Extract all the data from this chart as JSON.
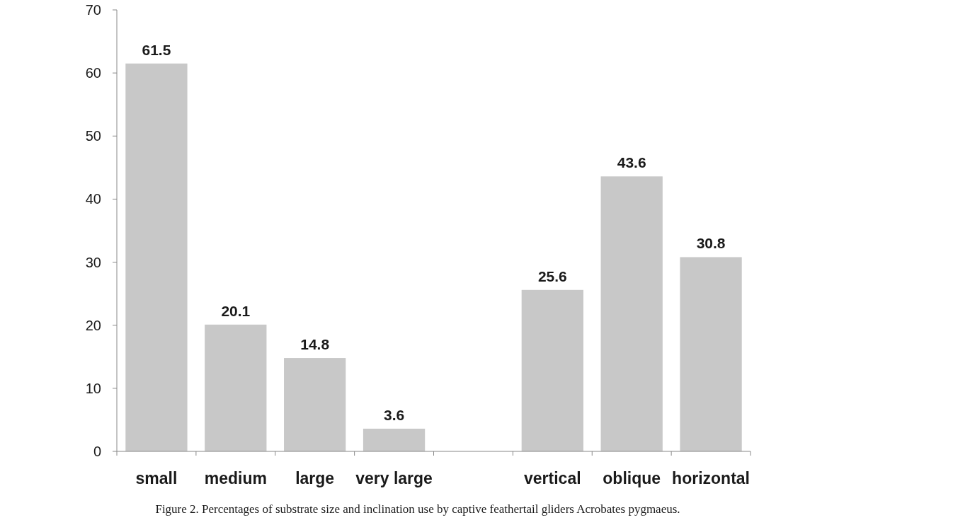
{
  "chart_data": {
    "type": "bar",
    "categories": [
      "small",
      "medium",
      "large",
      "very large",
      null,
      "vertical",
      "oblique",
      "horizontal"
    ],
    "values": [
      61.5,
      20.1,
      14.8,
      3.6,
      null,
      25.6,
      43.6,
      30.8
    ],
    "color": "#c8c8c8",
    "ylim": [
      0,
      70
    ],
    "yticks": [
      0,
      10,
      20,
      30,
      40,
      50,
      60,
      70
    ],
    "data_labels": true,
    "grid": false,
    "annotations": [
      "Figure 2. Percentages of substrate size and inclination use by captive feathertail gliders Acrobates pygmaeus."
    ]
  }
}
